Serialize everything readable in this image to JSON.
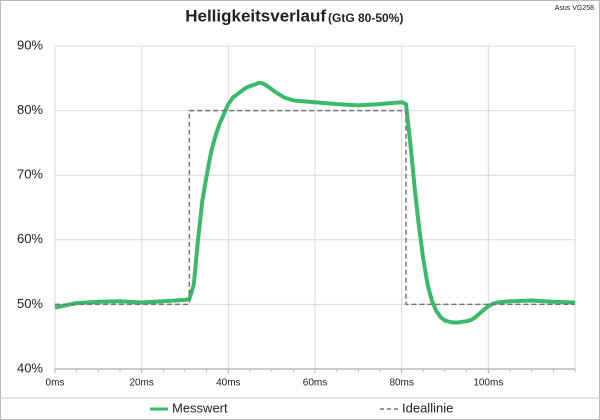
{
  "chart_data": {
    "type": "line",
    "title": "Helligkeitsverlauf",
    "subtitle": "(GtG 80-50%)",
    "annotation": "Asus VG258",
    "xlim": [
      0,
      120
    ],
    "ylim": [
      40,
      90
    ],
    "xticks": [
      {
        "value": 0,
        "label": "0ms"
      },
      {
        "value": 20,
        "label": "20ms"
      },
      {
        "value": 40,
        "label": "40ms"
      },
      {
        "value": 60,
        "label": "60ms"
      },
      {
        "value": 80,
        "label": "80ms"
      },
      {
        "value": 100,
        "label": "100ms"
      }
    ],
    "yticks": [
      {
        "value": 40,
        "label": "40%"
      },
      {
        "value": 50,
        "label": "50%"
      },
      {
        "value": 60,
        "label": "60%"
      },
      {
        "value": 70,
        "label": "70%"
      },
      {
        "value": 80,
        "label": "80%"
      },
      {
        "value": 90,
        "label": "90%"
      }
    ],
    "grid": true,
    "legend": "bottom",
    "series": [
      {
        "name": "Messwert",
        "color": "#3cba6c",
        "dash": false,
        "x": [
          0,
          5,
          10,
          15,
          20,
          25,
          30,
          31,
          32,
          33,
          34,
          35,
          36,
          37,
          38,
          39,
          40,
          41,
          42,
          43,
          44,
          45,
          46,
          47,
          48,
          49,
          50,
          51,
          52,
          53,
          54,
          55,
          56,
          60,
          65,
          70,
          75,
          80,
          81,
          82,
          83,
          84,
          85,
          86,
          87,
          88,
          89,
          90,
          91,
          92,
          93,
          94,
          95,
          96,
          97,
          98,
          99,
          100,
          101,
          102,
          105,
          110,
          115,
          120
        ],
        "values": [
          49.5,
          50.2,
          50.4,
          50.5,
          50.3,
          50.5,
          50.7,
          50.8,
          53,
          60,
          66,
          70,
          73.5,
          76,
          78,
          79.5,
          81,
          82,
          82.5,
          83,
          83.5,
          83.8,
          84,
          84.3,
          84.2,
          83.8,
          83.3,
          82.8,
          82.4,
          82,
          81.8,
          81.6,
          81.5,
          81.3,
          81,
          80.8,
          81,
          81.3,
          81,
          75,
          68,
          62,
          57,
          53,
          50.5,
          49,
          48,
          47.5,
          47.3,
          47.2,
          47.2,
          47.3,
          47.4,
          47.6,
          48,
          48.6,
          49.2,
          49.7,
          50.1,
          50.3,
          50.5,
          50.6,
          50.4,
          50.3
        ]
      },
      {
        "name": "Ideallinie",
        "color": "#777777",
        "dash": true,
        "x": [
          0,
          31,
          31,
          81,
          81,
          120
        ],
        "values": [
          50,
          50,
          80,
          80,
          50,
          50
        ]
      }
    ]
  }
}
